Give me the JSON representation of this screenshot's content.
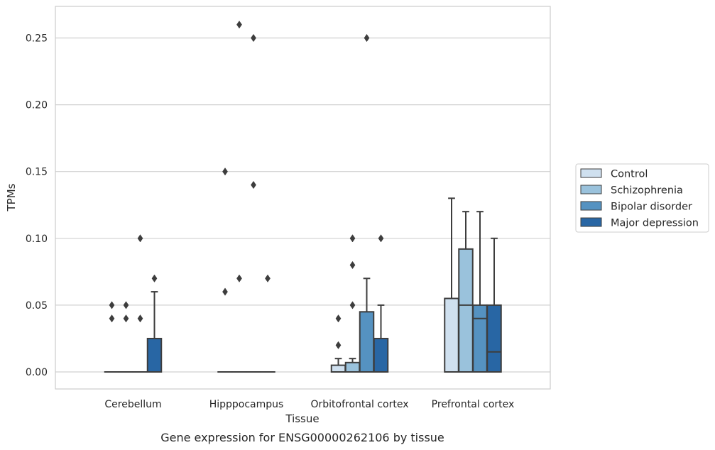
{
  "chart_data": {
    "type": "box",
    "caption": "Gene expression for ENSG00000262106 by tissue",
    "xlabel": "Tissue",
    "ylabel": "TPMs",
    "ylim": [
      -0.013,
      0.274
    ],
    "yticks": [
      0.0,
      0.05,
      0.1,
      0.15,
      0.2,
      0.25
    ],
    "ytick_labels": [
      "0.00",
      "0.05",
      "0.10",
      "0.15",
      "0.20",
      "0.25"
    ],
    "categories": [
      "Cerebellum",
      "Hipppocampus",
      "Orbitofrontal cortex",
      "Prefrontal cortex"
    ],
    "grid": "horizontal",
    "legend_position": "right",
    "series": [
      {
        "name": "Control",
        "color": "#cfe0ef",
        "boxes": [
          {
            "q1": 0,
            "median": 0,
            "q3": 0,
            "whisker_low": 0,
            "whisker_high": 0,
            "outliers": [
              0.04,
              0.05
            ]
          },
          {
            "q1": 0,
            "median": 0,
            "q3": 0,
            "whisker_low": 0,
            "whisker_high": 0,
            "outliers": [
              0.06,
              0.15
            ]
          },
          {
            "q1": 0,
            "median": 0,
            "q3": 0.005,
            "whisker_low": 0,
            "whisker_high": 0.01,
            "outliers": [
              0.02,
              0.04
            ]
          },
          {
            "q1": 0,
            "median": 0,
            "q3": 0.055,
            "whisker_low": 0,
            "whisker_high": 0.13,
            "outliers": []
          }
        ]
      },
      {
        "name": "Schizophrenia",
        "color": "#9ac2dc",
        "boxes": [
          {
            "q1": 0,
            "median": 0,
            "q3": 0,
            "whisker_low": 0,
            "whisker_high": 0,
            "outliers": [
              0.04,
              0.05
            ]
          },
          {
            "q1": 0,
            "median": 0,
            "q3": 0,
            "whisker_low": 0,
            "whisker_high": 0,
            "outliers": [
              0.07,
              0.26
            ]
          },
          {
            "q1": 0,
            "median": 0,
            "q3": 0.007,
            "whisker_low": 0,
            "whisker_high": 0.01,
            "outliers": [
              0.05,
              0.08,
              0.1
            ]
          },
          {
            "q1": 0,
            "median": 0.05,
            "q3": 0.092,
            "whisker_low": 0,
            "whisker_high": 0.12,
            "outliers": []
          }
        ]
      },
      {
        "name": "Bipolar disorder",
        "color": "#5592c1",
        "boxes": [
          {
            "q1": 0,
            "median": 0,
            "q3": 0,
            "whisker_low": 0,
            "whisker_high": 0,
            "outliers": [
              0.04,
              0.1
            ]
          },
          {
            "q1": 0,
            "median": 0,
            "q3": 0,
            "whisker_low": 0,
            "whisker_high": 0,
            "outliers": [
              0.14,
              0.25
            ]
          },
          {
            "q1": 0,
            "median": 0,
            "q3": 0.045,
            "whisker_low": 0,
            "whisker_high": 0.07,
            "outliers": [
              0.25
            ]
          },
          {
            "q1": 0,
            "median": 0.04,
            "q3": 0.05,
            "whisker_low": 0,
            "whisker_high": 0.12,
            "outliers": []
          }
        ]
      },
      {
        "name": "Major depression",
        "color": "#2866a4",
        "boxes": [
          {
            "q1": 0,
            "median": 0,
            "q3": 0.025,
            "whisker_low": 0,
            "whisker_high": 0.06,
            "outliers": [
              0.07
            ]
          },
          {
            "q1": 0,
            "median": 0,
            "q3": 0,
            "whisker_low": 0,
            "whisker_high": 0,
            "outliers": [
              0.07
            ]
          },
          {
            "q1": 0,
            "median": 0,
            "q3": 0.025,
            "whisker_low": 0,
            "whisker_high": 0.05,
            "outliers": [
              0.1
            ]
          },
          {
            "q1": 0,
            "median": 0.015,
            "q3": 0.05,
            "whisker_low": 0,
            "whisker_high": 0.1,
            "outliers": []
          }
        ]
      }
    ]
  }
}
